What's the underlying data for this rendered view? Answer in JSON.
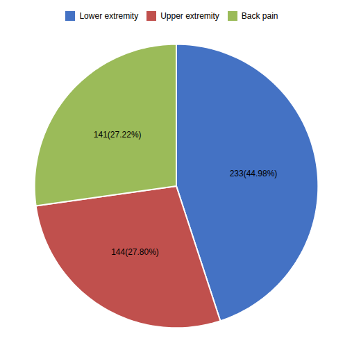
{
  "chart_data": {
    "type": "pie",
    "categories": [
      "Lower extremity",
      "Upper extremity",
      "Back pain"
    ],
    "values": [
      233,
      144,
      141
    ],
    "value_labels": [
      "233(44.98%)",
      "144(27.80%)",
      "141(27.22%)"
    ],
    "colors": [
      "#4472C4",
      "#C0504D",
      "#9BBB59"
    ],
    "data_labels": true,
    "legend": "top"
  }
}
